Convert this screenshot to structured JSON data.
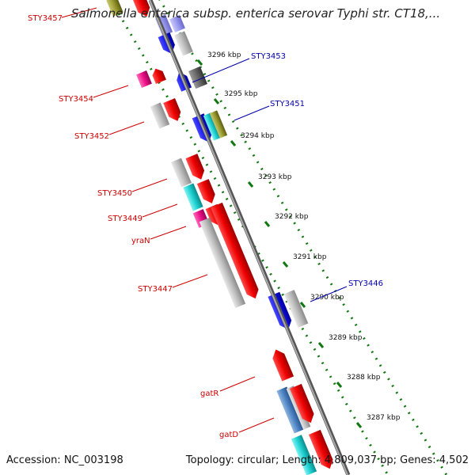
{
  "title": "Salmonella enterica subsp. enterica serovar Typhi str. CT18,...",
  "footer": {
    "accession": "Accession: NC_003198",
    "topology": "Topology: circular; Length: 4,809,037 bp; Genes: 4,502"
  },
  "colors": {
    "backbone": "#8a8a8a",
    "ticks": "#117711",
    "forward_label": "#cc0000",
    "reverse_label": "#0000aa"
  },
  "kbp_ticks": [
    "3296 kbp",
    "3295 kbp",
    "3294 kbp",
    "3293 kbp",
    "3292 kbp",
    "3291 kbp",
    "3290 kbp",
    "3289 kbp",
    "3288 kbp",
    "3287 kbp"
  ],
  "gene_labels": [
    {
      "name": "STY3457",
      "color": "#cc0000"
    },
    {
      "name": "STY3453",
      "color": "#0000aa"
    },
    {
      "name": "STY3454",
      "color": "#cc0000"
    },
    {
      "name": "STY3451",
      "color": "#0000aa"
    },
    {
      "name": "STY3452",
      "color": "#cc0000"
    },
    {
      "name": "STY3450",
      "color": "#cc0000"
    },
    {
      "name": "STY3449",
      "color": "#cc0000"
    },
    {
      "name": "yraN",
      "color": "#cc0000"
    },
    {
      "name": "STY3447",
      "color": "#cc0000"
    },
    {
      "name": "STY3446",
      "color": "#0000aa"
    },
    {
      "name": "gatR",
      "color": "#cc0000"
    },
    {
      "name": "gatD",
      "color": "#cc0000"
    }
  ]
}
